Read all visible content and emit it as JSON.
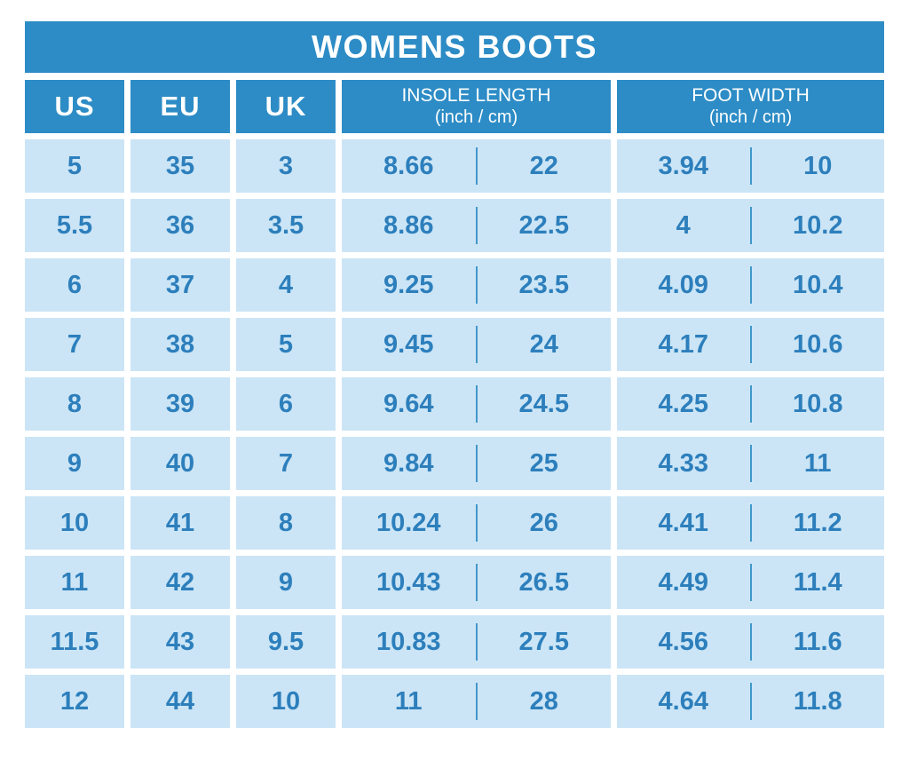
{
  "title": "WOMENS BOOTS",
  "header": {
    "us": "US",
    "eu": "EU",
    "uk": "UK",
    "insole": {
      "title": "INSOLE LENGTH",
      "subtitle": "(inch / cm)"
    },
    "foot": {
      "title": "FOOT WIDTH",
      "subtitle": "(inch / cm)"
    }
  },
  "colors": {
    "header_bg": "#2d8cc6",
    "cell_bg": "#cbe5f6",
    "cell_text": "#2d7fbc",
    "divider": "#4197ca",
    "page_bg": "#ffffff"
  },
  "chart_data": {
    "type": "table",
    "title": "WOMENS BOOTS",
    "columns": [
      "US",
      "EU",
      "UK",
      "INSOLE LENGTH (inch)",
      "INSOLE LENGTH (cm)",
      "FOOT WIDTH (inch)",
      "FOOT WIDTH (cm)"
    ],
    "rows": [
      [
        "5",
        "35",
        "3",
        "8.66",
        "22",
        "3.94",
        "10"
      ],
      [
        "5.5",
        "36",
        "3.5",
        "8.86",
        "22.5",
        "4",
        "10.2"
      ],
      [
        "6",
        "37",
        "4",
        "9.25",
        "23.5",
        "4.09",
        "10.4"
      ],
      [
        "7",
        "38",
        "5",
        "9.45",
        "24",
        "4.17",
        "10.6"
      ],
      [
        "8",
        "39",
        "6",
        "9.64",
        "24.5",
        "4.25",
        "10.8"
      ],
      [
        "9",
        "40",
        "7",
        "9.84",
        "25",
        "4.33",
        "11"
      ],
      [
        "10",
        "41",
        "8",
        "10.24",
        "26",
        "4.41",
        "11.2"
      ],
      [
        "11",
        "42",
        "9",
        "10.43",
        "26.5",
        "4.49",
        "11.4"
      ],
      [
        "11.5",
        "43",
        "9.5",
        "10.83",
        "27.5",
        "4.56",
        "11.6"
      ],
      [
        "12",
        "44",
        "10",
        "11",
        "28",
        "4.64",
        "11.8"
      ]
    ]
  }
}
